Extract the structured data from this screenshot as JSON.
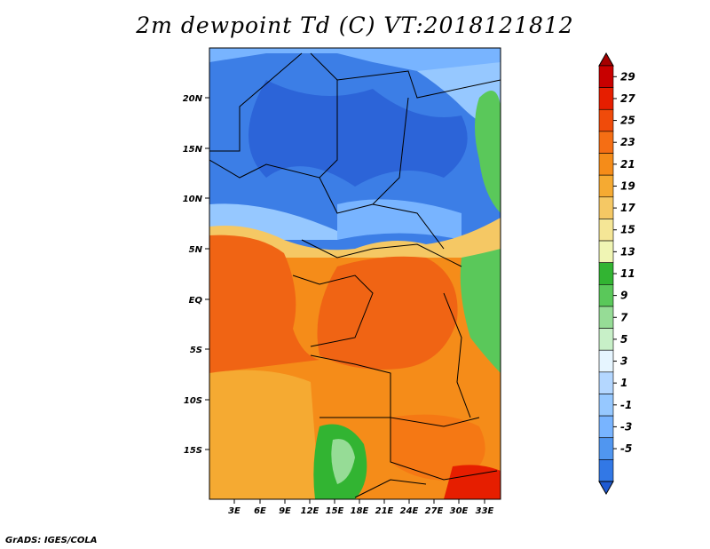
{
  "title": "2m dewpoint Td (C) VT:2018121812",
  "footer": "GrADS: IGES/COLA",
  "map": {
    "region": "Central Africa",
    "lon_ticks": [
      "3E",
      "6E",
      "9E",
      "12E",
      "15E",
      "18E",
      "21E",
      "24E",
      "27E",
      "30E",
      "33E"
    ],
    "lat_ticks": [
      "20N",
      "15N",
      "10N",
      "5N",
      "EQ",
      "5S",
      "10S",
      "15S"
    ],
    "lon_range": [
      0,
      34.5
    ],
    "lat_range": [
      -19.5,
      24.5
    ]
  },
  "colorbar": {
    "levels": [
      29,
      27,
      25,
      23,
      21,
      19,
      17,
      15,
      13,
      11,
      9,
      7,
      5,
      3,
      1,
      -1,
      -3,
      -5
    ],
    "colors": [
      "#a50000",
      "#c80000",
      "#e61e00",
      "#f04b0a",
      "#f56e14",
      "#f58c19",
      "#f5aa32",
      "#f5c864",
      "#f5e696",
      "#f0f5b4",
      "#32b432",
      "#5ac85a",
      "#96dc96",
      "#c8f0c8",
      "#e6f5ff",
      "#b4d7ff",
      "#96c8ff",
      "#78b4ff",
      "#5096f0",
      "#3278e6",
      "#1e5ad2"
    ]
  }
}
